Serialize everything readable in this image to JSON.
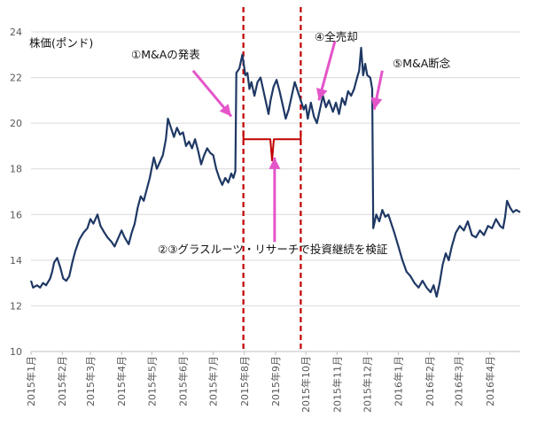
{
  "chart_data": {
    "type": "line",
    "ylabel": "株価(ポンド)",
    "ylim": [
      10,
      24
    ],
    "yticks": [
      10,
      12,
      14,
      16,
      18,
      20,
      22,
      24
    ],
    "xlim": [
      "2015-01-01",
      "2016-05-01"
    ],
    "grid": true,
    "x_tick_dates": [
      "2015-01-01",
      "2015-02-01",
      "2015-03-01",
      "2015-04-01",
      "2015-05-01",
      "2015-06-01",
      "2015-07-01",
      "2015-08-01",
      "2015-09-01",
      "2015-10-01",
      "2015-11-01",
      "2015-12-01",
      "2016-01-01",
      "2016-02-01",
      "2016-03-01",
      "2016-04-01"
    ],
    "x_tick_labels": [
      "2015年1月",
      "2015年2月",
      "2015年3月",
      "2015年4月",
      "2015年5月",
      "2015年6月",
      "2015年7月",
      "2015年8月",
      "2015年9月",
      "2015年10月",
      "2015年11月",
      "2015年12月",
      "2016年1月",
      "2016年2月",
      "2016年3月",
      "2016年4月"
    ],
    "series": [
      {
        "color": "#1f3864",
        "points": [
          [
            "2015-01-01",
            13.1
          ],
          [
            "2015-01-03",
            12.8
          ],
          [
            "2015-01-07",
            12.9
          ],
          [
            "2015-01-10",
            12.8
          ],
          [
            "2015-01-13",
            13.0
          ],
          [
            "2015-01-16",
            12.9
          ],
          [
            "2015-01-20",
            13.2
          ],
          [
            "2015-01-22",
            13.5
          ],
          [
            "2015-01-24",
            13.9
          ],
          [
            "2015-01-27",
            14.1
          ],
          [
            "2015-01-30",
            13.7
          ],
          [
            "2015-02-02",
            13.2
          ],
          [
            "2015-02-05",
            13.1
          ],
          [
            "2015-02-08",
            13.3
          ],
          [
            "2015-02-11",
            13.9
          ],
          [
            "2015-02-14",
            14.4
          ],
          [
            "2015-02-18",
            14.9
          ],
          [
            "2015-02-22",
            15.2
          ],
          [
            "2015-02-26",
            15.4
          ],
          [
            "2015-03-01",
            15.8
          ],
          [
            "2015-03-04",
            15.6
          ],
          [
            "2015-03-08",
            16.0
          ],
          [
            "2015-03-11",
            15.5
          ],
          [
            "2015-03-15",
            15.2
          ],
          [
            "2015-03-18",
            15.0
          ],
          [
            "2015-03-22",
            14.8
          ],
          [
            "2015-03-25",
            14.6
          ],
          [
            "2015-03-28",
            14.9
          ],
          [
            "2015-04-01",
            15.3
          ],
          [
            "2015-04-04",
            15.0
          ],
          [
            "2015-04-08",
            14.7
          ],
          [
            "2015-04-11",
            15.2
          ],
          [
            "2015-04-14",
            15.6
          ],
          [
            "2015-04-17",
            16.3
          ],
          [
            "2015-04-20",
            16.8
          ],
          [
            "2015-04-23",
            16.6
          ],
          [
            "2015-04-26",
            17.1
          ],
          [
            "2015-04-29",
            17.6
          ],
          [
            "2015-05-03",
            18.5
          ],
          [
            "2015-05-06",
            18.0
          ],
          [
            "2015-05-09",
            18.3
          ],
          [
            "2015-05-12",
            18.6
          ],
          [
            "2015-05-15",
            19.3
          ],
          [
            "2015-05-17",
            20.2
          ],
          [
            "2015-05-20",
            19.8
          ],
          [
            "2015-05-23",
            19.4
          ],
          [
            "2015-05-26",
            19.8
          ],
          [
            "2015-05-29",
            19.5
          ],
          [
            "2015-06-01",
            19.6
          ],
          [
            "2015-06-04",
            19.0
          ],
          [
            "2015-06-07",
            19.2
          ],
          [
            "2015-06-10",
            18.9
          ],
          [
            "2015-06-13",
            19.3
          ],
          [
            "2015-06-16",
            18.8
          ],
          [
            "2015-06-19",
            18.2
          ],
          [
            "2015-06-22",
            18.6
          ],
          [
            "2015-06-25",
            18.9
          ],
          [
            "2015-06-28",
            18.7
          ],
          [
            "2015-07-01",
            18.6
          ],
          [
            "2015-07-04",
            18.0
          ],
          [
            "2015-07-07",
            17.6
          ],
          [
            "2015-07-10",
            17.3
          ],
          [
            "2015-07-13",
            17.6
          ],
          [
            "2015-07-16",
            17.4
          ],
          [
            "2015-07-19",
            17.8
          ],
          [
            "2015-07-21",
            17.6
          ],
          [
            "2015-07-23",
            17.9
          ],
          [
            "2015-07-24",
            22.2
          ],
          [
            "2015-07-27",
            22.4
          ],
          [
            "2015-07-30",
            23.0
          ],
          [
            "2015-08-02",
            22.1
          ],
          [
            "2015-08-04",
            22.2
          ],
          [
            "2015-08-06",
            21.5
          ],
          [
            "2015-08-08",
            21.8
          ],
          [
            "2015-08-11",
            21.2
          ],
          [
            "2015-08-14",
            21.8
          ],
          [
            "2015-08-17",
            22.0
          ],
          [
            "2015-08-20",
            21.4
          ],
          [
            "2015-08-23",
            20.8
          ],
          [
            "2015-08-25",
            20.4
          ],
          [
            "2015-08-27",
            21.0
          ],
          [
            "2015-08-30",
            21.6
          ],
          [
            "2015-09-02",
            21.9
          ],
          [
            "2015-09-05",
            21.4
          ],
          [
            "2015-09-08",
            20.8
          ],
          [
            "2015-09-11",
            20.2
          ],
          [
            "2015-09-14",
            20.6
          ],
          [
            "2015-09-17",
            21.2
          ],
          [
            "2015-09-20",
            21.8
          ],
          [
            "2015-09-23",
            21.4
          ],
          [
            "2015-09-26",
            21.0
          ],
          [
            "2015-09-29",
            20.6
          ],
          [
            "2015-10-01",
            20.8
          ],
          [
            "2015-10-03",
            20.2
          ],
          [
            "2015-10-06",
            20.9
          ],
          [
            "2015-10-09",
            20.3
          ],
          [
            "2015-10-12",
            20.0
          ],
          [
            "2015-10-15",
            20.6
          ],
          [
            "2015-10-18",
            21.2
          ],
          [
            "2015-10-21",
            20.7
          ],
          [
            "2015-10-24",
            21.0
          ],
          [
            "2015-10-28",
            20.5
          ],
          [
            "2015-10-31",
            20.9
          ],
          [
            "2015-11-03",
            20.4
          ],
          [
            "2015-11-06",
            21.1
          ],
          [
            "2015-11-09",
            20.8
          ],
          [
            "2015-11-12",
            21.4
          ],
          [
            "2015-11-15",
            21.2
          ],
          [
            "2015-11-18",
            21.5
          ],
          [
            "2015-11-21",
            22.0
          ],
          [
            "2015-11-23",
            22.3
          ],
          [
            "2015-11-25",
            23.3
          ],
          [
            "2015-11-27",
            22.1
          ],
          [
            "2015-11-29",
            22.6
          ],
          [
            "2015-12-01",
            22.1
          ],
          [
            "2015-12-04",
            22.0
          ],
          [
            "2015-12-06",
            21.5
          ],
          [
            "2015-12-07",
            15.4
          ],
          [
            "2015-12-10",
            16.0
          ],
          [
            "2015-12-13",
            15.7
          ],
          [
            "2015-12-16",
            16.2
          ],
          [
            "2015-12-19",
            15.9
          ],
          [
            "2015-12-22",
            16.0
          ],
          [
            "2015-12-25",
            15.6
          ],
          [
            "2015-12-28",
            15.2
          ],
          [
            "2016-01-01",
            14.6
          ],
          [
            "2016-01-05",
            14.0
          ],
          [
            "2016-01-09",
            13.5
          ],
          [
            "2016-01-13",
            13.3
          ],
          [
            "2016-01-17",
            13.0
          ],
          [
            "2016-01-21",
            12.8
          ],
          [
            "2016-01-25",
            13.1
          ],
          [
            "2016-01-29",
            12.8
          ],
          [
            "2016-02-02",
            12.6
          ],
          [
            "2016-02-05",
            12.9
          ],
          [
            "2016-02-08",
            12.4
          ],
          [
            "2016-02-11",
            13.0
          ],
          [
            "2016-02-14",
            13.8
          ],
          [
            "2016-02-17",
            14.3
          ],
          [
            "2016-02-20",
            14.0
          ],
          [
            "2016-02-23",
            14.6
          ],
          [
            "2016-02-27",
            15.2
          ],
          [
            "2016-03-02",
            15.5
          ],
          [
            "2016-03-06",
            15.3
          ],
          [
            "2016-03-10",
            15.7
          ],
          [
            "2016-03-14",
            15.1
          ],
          [
            "2016-03-18",
            15.0
          ],
          [
            "2016-03-22",
            15.3
          ],
          [
            "2016-03-26",
            15.1
          ],
          [
            "2016-03-30",
            15.5
          ],
          [
            "2016-04-03",
            15.4
          ],
          [
            "2016-04-07",
            15.8
          ],
          [
            "2016-04-11",
            15.5
          ],
          [
            "2016-04-14",
            15.4
          ],
          [
            "2016-04-16",
            15.9
          ],
          [
            "2016-04-18",
            16.6
          ],
          [
            "2016-04-21",
            16.3
          ],
          [
            "2016-04-24",
            16.1
          ],
          [
            "2016-04-27",
            16.2
          ],
          [
            "2016-05-01",
            16.1
          ]
        ]
      }
    ],
    "reference_lines": [
      {
        "x": "2015-07-31",
        "color": "#c00000",
        "style": "dashed"
      },
      {
        "x": "2015-09-26",
        "color": "#c00000",
        "style": "dashed"
      }
    ],
    "bracket": {
      "x_start": "2015-07-31",
      "x_end": "2015-09-26",
      "y": 19.3,
      "color": "#c00000"
    },
    "annotations": [
      {
        "text": "①M&Aの発表",
        "color": "#e455c9"
      },
      {
        "text": "④全売却",
        "color": "#e455c9"
      },
      {
        "text": "⑤M&A断念",
        "color": "#e455c9"
      },
      {
        "text": "②③グラスルーツ・リサーチで投資継続を検証",
        "color": "#e455c9"
      }
    ]
  }
}
